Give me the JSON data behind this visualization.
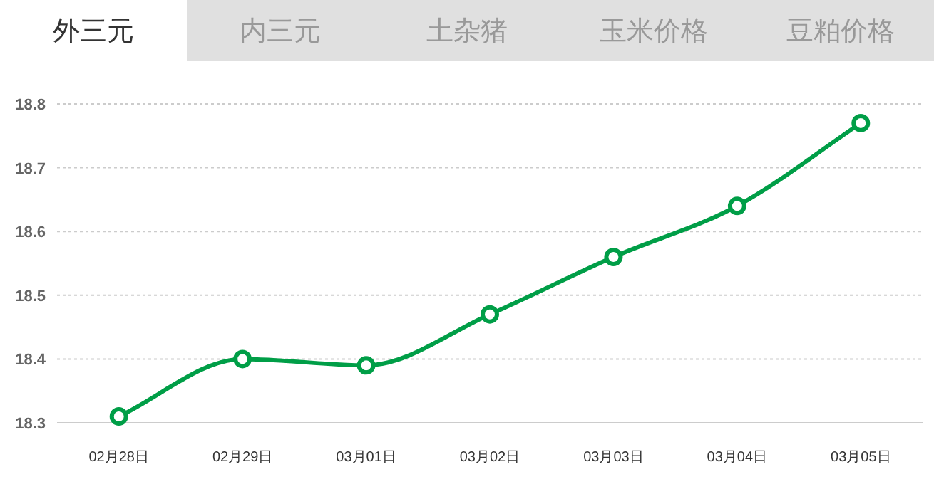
{
  "chart_data": {
    "type": "line",
    "title": "外三元",
    "annotations": [
      "内三元",
      "土杂猪",
      "玉米价格",
      "豆粕价格"
    ],
    "categories": [
      "02月28日",
      "02月29日",
      "03月01日",
      "03月02日",
      "03月03日",
      "03月04日",
      "03月05日"
    ],
    "series": [
      {
        "color": "#009e47",
        "values": [
          18.31,
          18.4,
          18.39,
          18.47,
          18.56,
          18.64,
          18.77
        ]
      }
    ],
    "ylim": [
      18.3,
      18.8
    ],
    "yticks": [
      18.3,
      18.4,
      18.5,
      18.6,
      18.7,
      18.8
    ],
    "grid": "y",
    "marker": "circle",
    "line_style": "solid"
  }
}
